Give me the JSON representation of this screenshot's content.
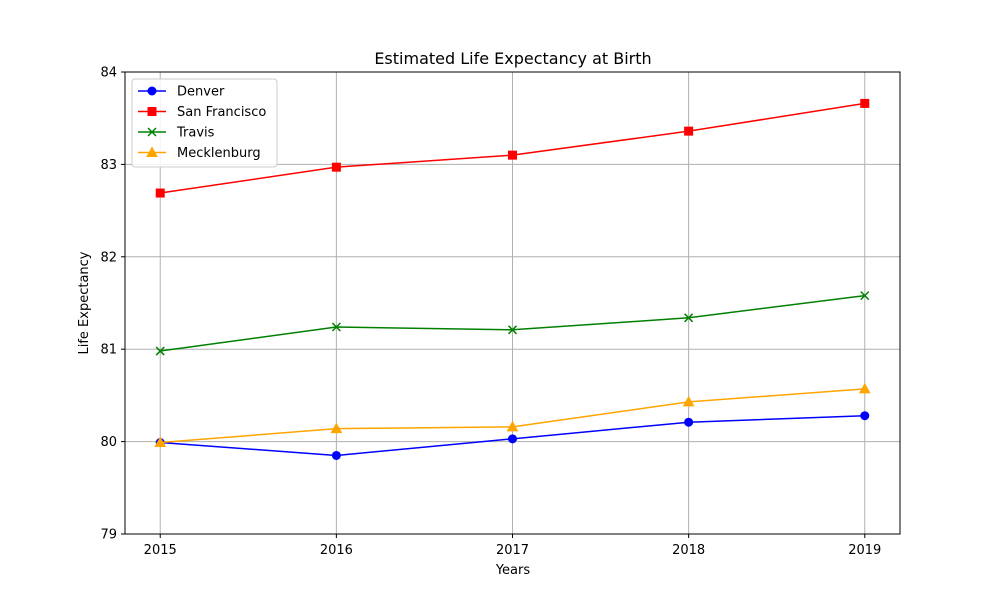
{
  "chart_data": {
    "type": "line",
    "title": "Estimated Life Expectancy at Birth",
    "xlabel": "Years",
    "ylabel": "Life Expectancy",
    "x": [
      2015,
      2016,
      2017,
      2018,
      2019
    ],
    "x_tick_labels": [
      "2015",
      "2016",
      "2017",
      "2018",
      "2019"
    ],
    "xlim": [
      2014.8,
      2019.2
    ],
    "ylim": [
      79,
      84
    ],
    "y_ticks": [
      79,
      80,
      81,
      82,
      83,
      84
    ],
    "y_tick_labels": [
      "79",
      "80",
      "81",
      "82",
      "83",
      "84"
    ],
    "grid": true,
    "legend_position": "top-left",
    "series": [
      {
        "name": "Denver",
        "color": "#0000ff",
        "marker": "circle",
        "values": [
          79.99,
          79.85,
          80.03,
          80.21,
          80.28
        ]
      },
      {
        "name": "San Francisco",
        "color": "#ff0000",
        "marker": "square",
        "values": [
          82.69,
          82.97,
          83.1,
          83.36,
          83.66
        ]
      },
      {
        "name": "Travis",
        "color": "#008000",
        "marker": "x",
        "values": [
          80.98,
          81.24,
          81.21,
          81.34,
          81.58
        ]
      },
      {
        "name": "Mecklenburg",
        "color": "#ffa500",
        "marker": "triangle-up",
        "values": [
          79.99,
          80.14,
          80.16,
          80.43,
          80.57
        ]
      }
    ]
  }
}
